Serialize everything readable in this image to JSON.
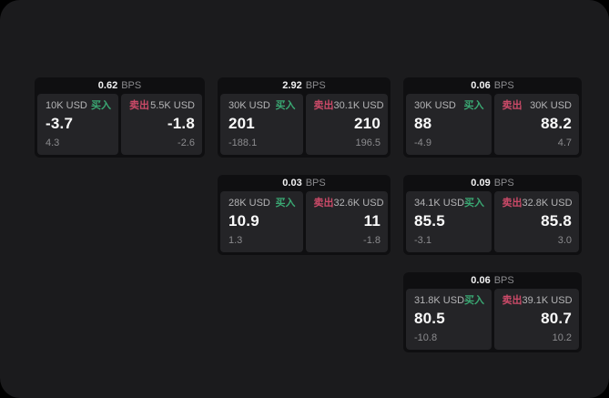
{
  "labels": {
    "bps": "BPS",
    "buy": "买入",
    "sell": "卖出"
  },
  "colors": {
    "backdrop": "#000000",
    "window_bg": "#1b1b1d",
    "card_bg": "#0f0f11",
    "tile_bg": "#242427",
    "buy_green": "#3aa873",
    "sell_red": "#cb4a68",
    "text_primary": "#fafafa",
    "text_secondary": "#8b8b8e"
  },
  "cards": [
    {
      "bps": "0.62",
      "buy": {
        "size": "10K USD",
        "value": "-3.7",
        "delta": "4.3"
      },
      "sell": {
        "size": "5.5K USD",
        "value": "-1.8",
        "delta": "-2.6"
      }
    },
    {
      "bps": "2.92",
      "buy": {
        "size": "30K USD",
        "value": "201",
        "delta": "-188.1"
      },
      "sell": {
        "size": "30.1K USD",
        "value": "210",
        "delta": "196.5"
      }
    },
    {
      "bps": "0.06",
      "buy": {
        "size": "30K USD",
        "value": "88",
        "delta": "-4.9"
      },
      "sell": {
        "size": "30K USD",
        "value": "88.2",
        "delta": "4.7"
      }
    },
    {
      "bps": "0.03",
      "buy": {
        "size": "28K USD",
        "value": "10.9",
        "delta": "1.3"
      },
      "sell": {
        "size": "32.6K USD",
        "value": "11",
        "delta": "-1.8"
      }
    },
    {
      "bps": "0.09",
      "buy": {
        "size": "34.1K USD",
        "value": "85.5",
        "delta": "-3.1"
      },
      "sell": {
        "size": "32.8K USD",
        "value": "85.8",
        "delta": "3.0"
      }
    },
    {
      "bps": "0.06",
      "buy": {
        "size": "31.8K USD",
        "value": "80.5",
        "delta": "-10.8"
      },
      "sell": {
        "size": "39.1K USD",
        "value": "80.7",
        "delta": "10.2"
      }
    }
  ]
}
